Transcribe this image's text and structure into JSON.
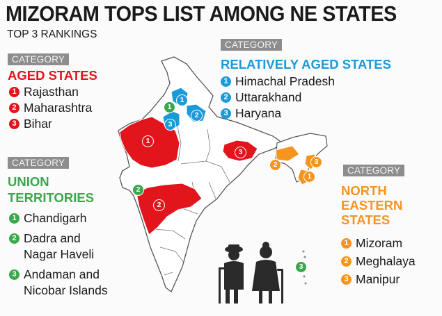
{
  "title": "MIZORAM TOPS LIST AMONG NE STATES",
  "subtitle": "TOP 3 RANKINGS",
  "colors": {
    "red": "#e2141c",
    "blue": "#1b9ad8",
    "green": "#3aa74a",
    "orange": "#f7941d",
    "tag_gray": "#8d8d8d",
    "map_outline": "#555555",
    "map_fill": "#ffffff"
  },
  "categories": [
    {
      "id": "aged",
      "tag": "CATEGORY",
      "heading_lines": [
        "AGED STATES"
      ],
      "color": "#e2141c",
      "items": [
        {
          "rank": "1",
          "name": "Rajasthan"
        },
        {
          "rank": "2",
          "name": "Maharashtra"
        },
        {
          "rank": "3",
          "name": "Bihar"
        }
      ]
    },
    {
      "id": "relatively-aged",
      "tag": "CATEGORY",
      "heading_lines": [
        "RELATIVELY AGED STATES"
      ],
      "color": "#1b9ad8",
      "items": [
        {
          "rank": "1",
          "name": "Himachal Pradesh"
        },
        {
          "rank": "2",
          "name": "Uttarakhand"
        },
        {
          "rank": "3",
          "name": "Haryana"
        }
      ]
    },
    {
      "id": "union-territories",
      "tag": "CATEGORY",
      "heading_lines": [
        "UNION",
        "TERRITORIES"
      ],
      "color": "#3aa74a",
      "items": [
        {
          "rank": "1",
          "name": "Chandigarh"
        },
        {
          "rank": "2",
          "name": "Dadra and\nNagar Haveli"
        },
        {
          "rank": "3",
          "name": "Andaman and\nNicobar Islands"
        }
      ]
    },
    {
      "id": "north-eastern",
      "tag": "CATEGORY",
      "heading_lines": [
        "NORTH",
        "EASTERN",
        "STATES"
      ],
      "color": "#f7941d",
      "items": [
        {
          "rank": "1",
          "name": "Mizoram"
        },
        {
          "rank": "2",
          "name": "Meghalaya"
        },
        {
          "rank": "3",
          "name": "Manipur"
        }
      ]
    }
  ],
  "map_markers": [
    {
      "region": "Rajasthan",
      "rank": "1",
      "category": "aged",
      "color": "#e2141c"
    },
    {
      "region": "Maharashtra",
      "rank": "2",
      "category": "aged",
      "color": "#e2141c"
    },
    {
      "region": "Bihar",
      "rank": "3",
      "category": "aged",
      "color": "#e2141c"
    },
    {
      "region": "Himachal Pradesh",
      "rank": "1",
      "category": "relatively-aged",
      "color": "#1b9ad8"
    },
    {
      "region": "Uttarakhand",
      "rank": "2",
      "category": "relatively-aged",
      "color": "#1b9ad8"
    },
    {
      "region": "Haryana",
      "rank": "3",
      "category": "relatively-aged",
      "color": "#1b9ad8"
    },
    {
      "region": "Chandigarh",
      "rank": "1",
      "category": "union-territories",
      "color": "#3aa74a"
    },
    {
      "region": "Dadra and Nagar Haveli",
      "rank": "2",
      "category": "union-territories",
      "color": "#3aa74a"
    },
    {
      "region": "Andaman and Nicobar Islands",
      "rank": "3",
      "category": "union-territories",
      "color": "#3aa74a"
    },
    {
      "region": "Mizoram",
      "rank": "1",
      "category": "north-eastern",
      "color": "#f7941d"
    },
    {
      "region": "Meghalaya",
      "rank": "2",
      "category": "north-eastern",
      "color": "#f7941d"
    },
    {
      "region": "Manipur",
      "rank": "3",
      "category": "north-eastern",
      "color": "#f7941d"
    }
  ],
  "illustration": {
    "icon": "elderly-couple-icon"
  }
}
